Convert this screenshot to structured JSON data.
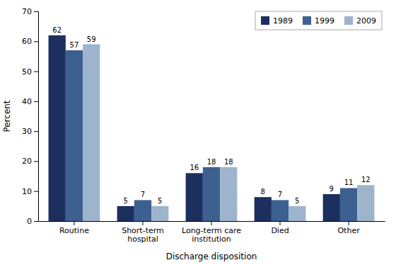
{
  "chart_data": {
    "type": "bar",
    "categories": [
      "Routine",
      "Short-term\nhospital",
      "Long-term care\ninstitution",
      "Died",
      "Other"
    ],
    "series": [
      {
        "name": "1989",
        "color": "#1c2f5e",
        "values": [
          62,
          5,
          16,
          8,
          9
        ]
      },
      {
        "name": "1999",
        "color": "#3c6090",
        "values": [
          57,
          7,
          18,
          7,
          11
        ]
      },
      {
        "name": "2009",
        "color": "#9db4cc",
        "values": [
          59,
          5,
          18,
          5,
          12
        ]
      }
    ],
    "xlabel": "Discharge disposition",
    "ylabel": "Percent",
    "ylim": [
      0,
      70
    ],
    "yticks": [
      0,
      10,
      20,
      30,
      40,
      50,
      60,
      70
    ],
    "grid": false,
    "legend": "top-right",
    "data_labels": true
  }
}
